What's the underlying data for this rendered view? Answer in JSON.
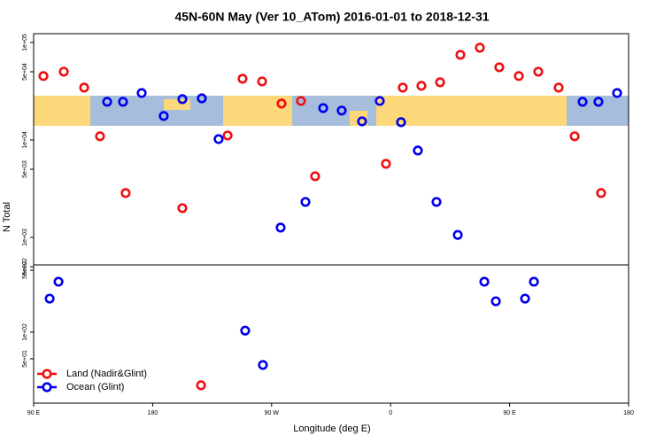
{
  "chart_data": [
    {
      "type": "scatter",
      "title": "45N-60N May (Ver 10_ATom)   2016-01-01 to 2018-12-31",
      "ylabel": "N Total",
      "log_y": true,
      "xlim": [
        90,
        540
      ],
      "ylim": [
        522,
        123000
      ],
      "yticks": [
        {
          "value": 100000,
          "label": "1e+05"
        },
        {
          "value": 50000,
          "label": "5e+04"
        },
        {
          "value": 10000,
          "label": "1e+04"
        },
        {
          "value": 5000,
          "label": "5e+03"
        },
        {
          "value": 1000,
          "label": "1e+03"
        },
        {
          "value": 500,
          "label": "5e+02"
        }
      ],
      "series": [
        {
          "color": "#ee1111",
          "x": [
            97.4,
            112.8,
            128.2,
            140.2,
            159.6,
            202.5,
            236.7,
            248,
            262.8,
            277.5,
            292.2,
            302.9,
            356.5,
            369.2,
            383.3,
            397.4,
            412.8,
            427.5,
            442.2,
            457,
            471.7,
            487.1,
            499.2,
            519.2
          ],
          "values": [
            45200,
            50100,
            34400,
            10900,
            2850,
            1995,
            11100,
            42400,
            39800,
            23600,
            25100,
            4240,
            5690,
            34400,
            35900,
            39000,
            74600,
            88200,
            55600,
            45200,
            50100,
            34400,
            10900,
            2850
          ]
        },
        {
          "color": "#0000ee",
          "x": [
            145.6,
            157.6,
            171.7,
            188.4,
            202.5,
            217.2,
            229.9,
            276.8,
            295.6,
            309,
            323,
            338.4,
            351.8,
            367.9,
            380.6,
            394.7,
            410.8,
            505.2,
            517.2,
            531.3
          ],
          "values": [
            24600,
            24600,
            30300,
            17600,
            26200,
            26700,
            10200,
            1260,
            2310,
            21200,
            20000,
            15500,
            25100,
            15200,
            7780,
            2310,
            1060,
            24600,
            24600,
            30300
          ]
        }
      ]
    },
    {
      "type": "scatter",
      "xlabel": "Longitude (deg E)",
      "log_y": true,
      "legend": "lower left",
      "xlim": [
        90,
        540
      ],
      "ylim": [
        15.8,
        574
      ],
      "xticks": [
        {
          "value": 90,
          "label": "90 E"
        },
        180,
        {
          "value": 270,
          "label": "90 W"
        },
        {
          "value": 360,
          "label": "0"
        },
        {
          "value": 450,
          "label": "90 E"
        },
        {
          "value": 540,
          "label": "180"
        }
      ],
      "yticks": [
        {
          "value": 500,
          "label": "5e+02"
        },
        {
          "value": 100,
          "label": "1e+02"
        },
        {
          "value": 50,
          "label": "5e+01"
        }
      ],
      "series": [
        {
          "name": "Land (Nadir&Glint)",
          "color": "#ee1111",
          "x": [
            216.6
          ],
          "values": [
            25.1
          ]
        },
        {
          "name": "Ocean (Glint)",
          "color": "#0000ee",
          "x": [
            102.1,
            108.8,
            250,
            263.4,
            430.9,
            439.6,
            461.7,
            468.4
          ],
          "values": [
            239,
            371,
            104,
            42.6,
            371,
            223,
            239,
            371
          ]
        }
      ]
    }
  ]
}
